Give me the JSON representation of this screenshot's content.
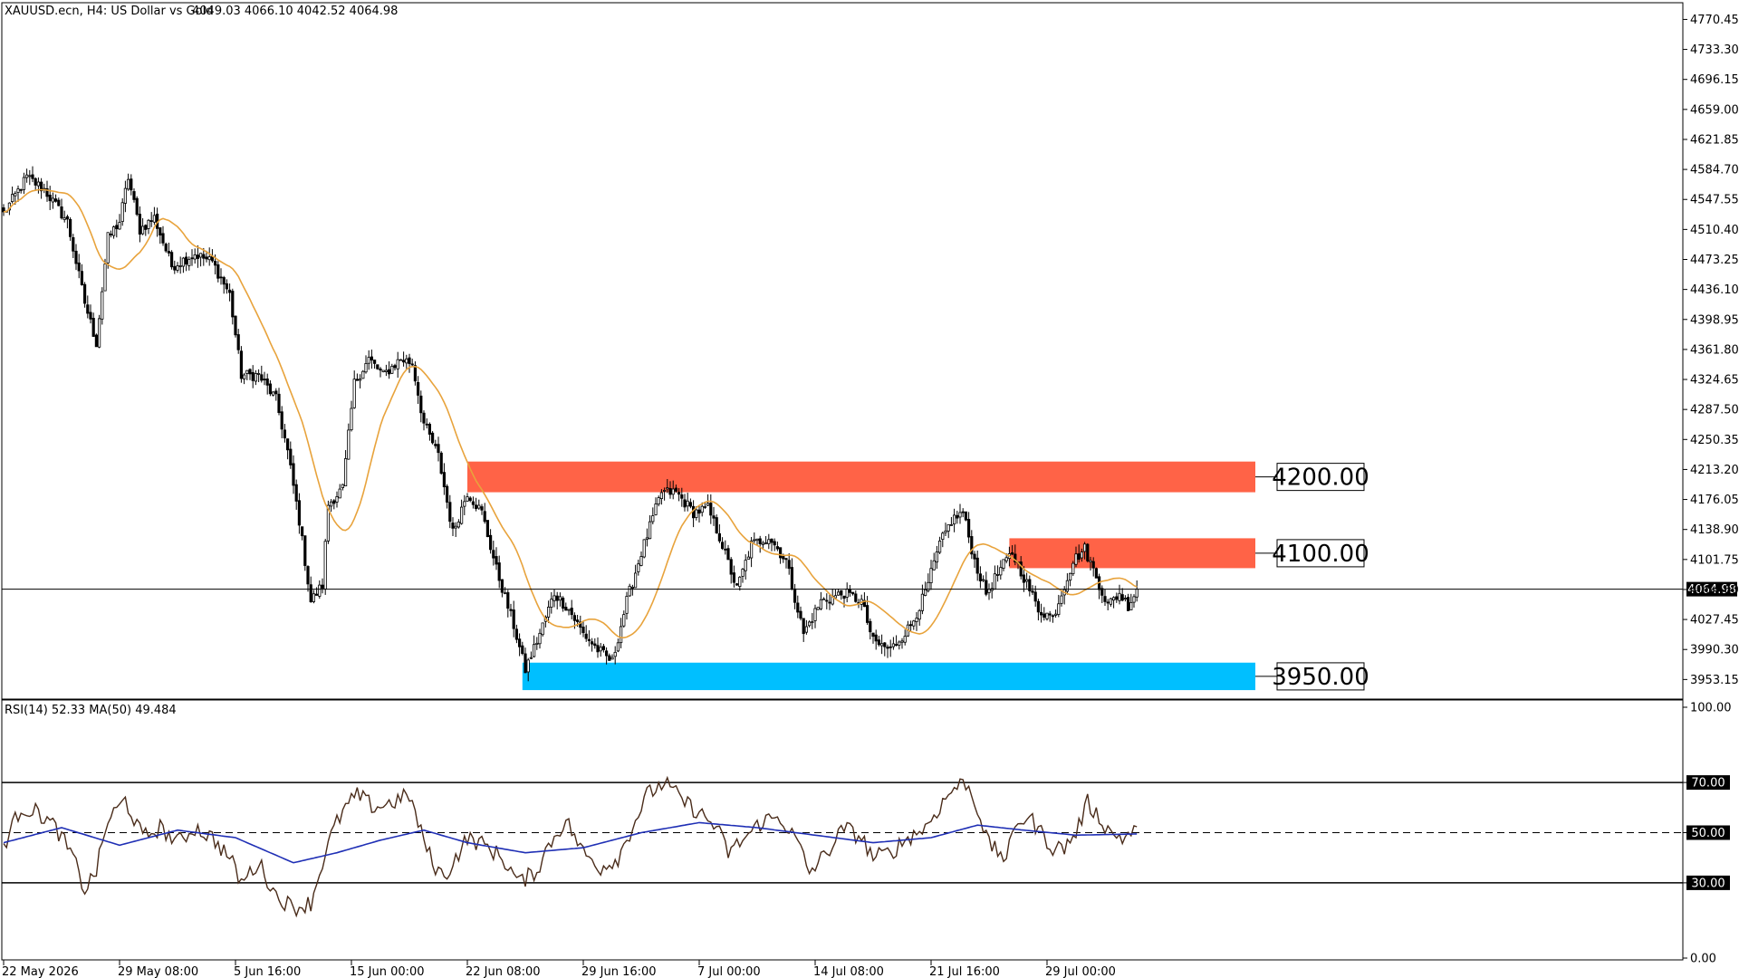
{
  "header": {
    "symbol": "XAUUSD.ecn, H4:  US Dollar vs Gold",
    "ohlc": "4049.03 4066.10 4042.52 4064.98"
  },
  "rsi_header": "RSI(14) 52.33 MA(50) 49.484",
  "current_price_label": "4064.98",
  "colors": {
    "candle": "#000000",
    "ma": "#E8A33C",
    "resistance": "#FF6347",
    "support": "#00BFFF",
    "rsi": "#4A2C1A",
    "rsi_ma": "#1F2FB5",
    "current_line": "#000000"
  },
  "chart_data": [
    {
      "type": "candlestick",
      "ylim": [
        3930.0,
        4790.0
      ],
      "y_ticks": [
        "4770.45",
        "4733.30",
        "4696.15",
        "4659.00",
        "4621.85",
        "4584.70",
        "4547.55",
        "4510.40",
        "4473.25",
        "4436.10",
        "4398.95",
        "4361.80",
        "4324.65",
        "4287.50",
        "4250.35",
        "4213.20",
        "4176.05",
        "4138.90",
        "4101.75",
        "4064.60",
        "4027.45",
        "3990.30",
        "3953.15"
      ],
      "x_tick_labels": [
        "22 May 2026",
        "29 May 08:00",
        "5 Jun 16:00",
        "15 Jun 00:00",
        "22 Jun 08:00",
        "29 Jun 16:00",
        "7 Jul 00:00",
        "14 Jul 08:00",
        "21 Jul 16:00",
        "29 Jul 00:00"
      ],
      "x_tick_index": [
        0,
        40,
        80,
        120,
        160,
        200,
        240,
        280,
        320,
        360
      ],
      "bar_count": 392,
      "close_waypoints": [
        [
          0,
          4530
        ],
        [
          8,
          4575
        ],
        [
          14,
          4560
        ],
        [
          22,
          4520
        ],
        [
          28,
          4420
        ],
        [
          32,
          4370
        ],
        [
          36,
          4500
        ],
        [
          40,
          4520
        ],
        [
          43,
          4575
        ],
        [
          47,
          4510
        ],
        [
          52,
          4525
        ],
        [
          58,
          4465
        ],
        [
          66,
          4480
        ],
        [
          72,
          4470
        ],
        [
          78,
          4430
        ],
        [
          82,
          4330
        ],
        [
          88,
          4330
        ],
        [
          94,
          4300
        ],
        [
          98,
          4235
        ],
        [
          102,
          4150
        ],
        [
          106,
          4050
        ],
        [
          110,
          4070
        ],
        [
          112,
          4170
        ],
        [
          117,
          4190
        ],
        [
          121,
          4320
        ],
        [
          126,
          4350
        ],
        [
          131,
          4330
        ],
        [
          137,
          4350
        ],
        [
          141,
          4345
        ],
        [
          145,
          4270
        ],
        [
          150,
          4230
        ],
        [
          155,
          4135
        ],
        [
          160,
          4185
        ],
        [
          165,
          4160
        ],
        [
          170,
          4090
        ],
        [
          176,
          4020
        ],
        [
          180,
          3965
        ],
        [
          185,
          4010
        ],
        [
          190,
          4060
        ],
        [
          195,
          4040
        ],
        [
          200,
          4010
        ],
        [
          205,
          3990
        ],
        [
          210,
          3975
        ],
        [
          215,
          4050
        ],
        [
          220,
          4110
        ],
        [
          227,
          4185
        ],
        [
          232,
          4185
        ],
        [
          238,
          4160
        ],
        [
          243,
          4165
        ],
        [
          247,
          4130
        ],
        [
          253,
          4065
        ],
        [
          258,
          4120
        ],
        [
          264,
          4130
        ],
        [
          270,
          4100
        ],
        [
          276,
          4010
        ],
        [
          282,
          4050
        ],
        [
          290,
          4060
        ],
        [
          296,
          4050
        ],
        [
          300,
          4000
        ],
        [
          306,
          3990
        ],
        [
          313,
          4020
        ],
        [
          318,
          4060
        ],
        [
          323,
          4120
        ],
        [
          327,
          4150
        ],
        [
          331,
          4160
        ],
        [
          335,
          4100
        ],
        [
          339,
          4060
        ],
        [
          344,
          4090
        ],
        [
          348,
          4110
        ],
        [
          352,
          4080
        ],
        [
          357,
          4040
        ],
        [
          362,
          4030
        ],
        [
          365,
          4060
        ],
        [
          369,
          4100
        ],
        [
          373,
          4115
        ],
        [
          377,
          4080
        ],
        [
          381,
          4045
        ],
        [
          385,
          4060
        ],
        [
          388,
          4045
        ],
        [
          391,
          4064.98
        ]
      ],
      "ma_period": 20,
      "zones": [
        {
          "label": "4200.00",
          "price_top": 4223,
          "price_bottom": 4185,
          "start_index": 160,
          "color": "resistance"
        },
        {
          "label": "4100.00",
          "price_top": 4128,
          "price_bottom": 4091,
          "start_index": 347,
          "color": "resistance"
        },
        {
          "label": "3950.00",
          "price_top": 3974,
          "price_bottom": 3940,
          "start_index": 179,
          "color": "support"
        }
      ],
      "current_price": 4064.98
    },
    {
      "type": "line",
      "title": "RSI(14) 52.33 MA(50) 49.484",
      "ylim": [
        0,
        100
      ],
      "y_ticks": [
        "100.00",
        "70.00",
        "50.00",
        "30.00",
        "0.00"
      ],
      "levels": [
        70,
        50,
        30
      ],
      "series": [
        {
          "name": "RSI(14)",
          "waypoints": [
            [
              0,
              45
            ],
            [
              6,
              60
            ],
            [
              12,
              58
            ],
            [
              18,
              52
            ],
            [
              24,
              40
            ],
            [
              28,
              27
            ],
            [
              32,
              35
            ],
            [
              36,
              55
            ],
            [
              42,
              63
            ],
            [
              48,
              48
            ],
            [
              54,
              52
            ],
            [
              60,
              46
            ],
            [
              66,
              52
            ],
            [
              72,
              48
            ],
            [
              78,
              40
            ],
            [
              82,
              30
            ],
            [
              88,
              38
            ],
            [
              94,
              25
            ],
            [
              100,
              20
            ],
            [
              106,
              22
            ],
            [
              110,
              38
            ],
            [
              114,
              52
            ],
            [
              118,
              60
            ],
            [
              122,
              65
            ],
            [
              128,
              60
            ],
            [
              134,
              62
            ],
            [
              140,
              65
            ],
            [
              144,
              50
            ],
            [
              148,
              38
            ],
            [
              152,
              32
            ],
            [
              156,
              40
            ],
            [
              160,
              48
            ],
            [
              166,
              45
            ],
            [
              172,
              40
            ],
            [
              178,
              30
            ],
            [
              184,
              35
            ],
            [
              188,
              45
            ],
            [
              194,
              55
            ],
            [
              200,
              42
            ],
            [
              206,
              36
            ],
            [
              212,
              40
            ],
            [
              218,
              55
            ],
            [
              222,
              65
            ],
            [
              228,
              70
            ],
            [
              234,
              63
            ],
            [
              240,
              58
            ],
            [
              246,
              52
            ],
            [
              250,
              42
            ],
            [
              256,
              48
            ],
            [
              262,
              55
            ],
            [
              268,
              56
            ],
            [
              274,
              46
            ],
            [
              278,
              34
            ],
            [
              284,
              42
            ],
            [
              290,
              52
            ],
            [
              296,
              48
            ],
            [
              300,
              40
            ],
            [
              306,
              42
            ],
            [
              312,
              48
            ],
            [
              318,
              52
            ],
            [
              324,
              62
            ],
            [
              328,
              68
            ],
            [
              332,
              70
            ],
            [
              336,
              60
            ],
            [
              340,
              45
            ],
            [
              346,
              40
            ],
            [
              350,
              55
            ],
            [
              354,
              56
            ],
            [
              358,
              50
            ],
            [
              362,
              44
            ],
            [
              366,
              44
            ],
            [
              370,
              50
            ],
            [
              374,
              62
            ],
            [
              378,
              56
            ],
            [
              382,
              50
            ],
            [
              386,
              48
            ],
            [
              390,
              50
            ],
            [
              391,
              52.33
            ]
          ]
        },
        {
          "name": "MA(50)",
          "waypoints": [
            [
              0,
              46
            ],
            [
              20,
              52
            ],
            [
              40,
              45
            ],
            [
              60,
              51
            ],
            [
              80,
              48
            ],
            [
              100,
              38
            ],
            [
              115,
              42
            ],
            [
              130,
              47
            ],
            [
              145,
              51
            ],
            [
              160,
              46
            ],
            [
              180,
              42
            ],
            [
              200,
              44
            ],
            [
              220,
              50
            ],
            [
              240,
              54
            ],
            [
              260,
              52
            ],
            [
              280,
              49
            ],
            [
              300,
              46
            ],
            [
              320,
              48
            ],
            [
              336,
              53
            ],
            [
              352,
              51
            ],
            [
              370,
              49
            ],
            [
              391,
              49.48
            ]
          ]
        }
      ]
    }
  ]
}
